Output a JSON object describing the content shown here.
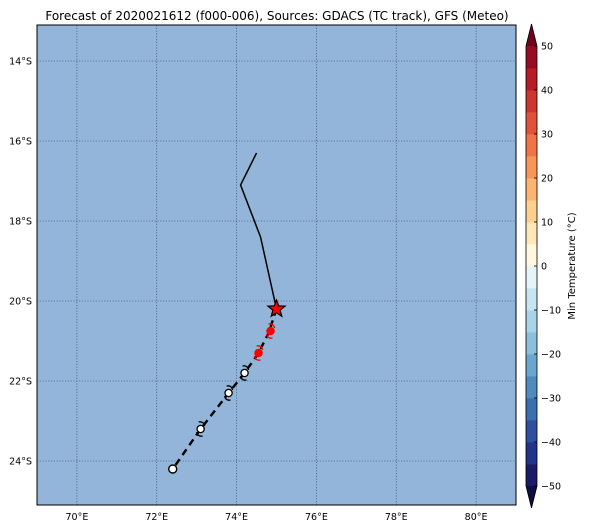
{
  "title": "Forecast of 2020021612 (f000-006), Sources: GDACS (TC track), GFS (Meteo)",
  "map": {
    "lon_range": [
      69.0,
      81.0
    ],
    "lat_range": [
      -25.1,
      -13.1
    ],
    "background_color": "#92b5d9",
    "grid": true,
    "x_ticks": [
      {
        "value": 70,
        "label": "70°E"
      },
      {
        "value": 72,
        "label": "72°E"
      },
      {
        "value": 74,
        "label": "74°E"
      },
      {
        "value": 76,
        "label": "76°E"
      },
      {
        "value": 78,
        "label": "78°E"
      },
      {
        "value": 80,
        "label": "80°E"
      }
    ],
    "y_ticks": [
      {
        "value": -14,
        "label": "14°S"
      },
      {
        "value": -16,
        "label": "16°S"
      },
      {
        "value": -18,
        "label": "18°S"
      },
      {
        "value": -20,
        "label": "20°S"
      },
      {
        "value": -22,
        "label": "22°S"
      },
      {
        "value": -24,
        "label": "24°S"
      }
    ]
  },
  "track": {
    "past": [
      [
        74.5,
        -16.3
      ],
      [
        74.1,
        -17.1
      ],
      [
        74.6,
        -18.4
      ],
      [
        75.0,
        -20.2
      ]
    ],
    "current": [
      75.0,
      -20.2
    ],
    "forecast_line": [
      [
        75.0,
        -20.2
      ],
      [
        74.8,
        -20.8
      ],
      [
        74.55,
        -21.3
      ],
      [
        74.2,
        -21.8
      ],
      [
        73.8,
        -22.3
      ],
      [
        73.1,
        -23.2
      ],
      [
        72.4,
        -24.2
      ]
    ],
    "forecast_points": [
      {
        "lon": 74.85,
        "lat": -20.75,
        "category": "storm",
        "color": "#ff0000"
      },
      {
        "lon": 74.55,
        "lat": -21.3,
        "category": "storm",
        "color": "#ff0000"
      },
      {
        "lon": 74.2,
        "lat": -21.8,
        "category": "depression",
        "color": "#ffffff"
      },
      {
        "lon": 73.8,
        "lat": -22.3,
        "category": "depression",
        "color": "#ffffff"
      },
      {
        "lon": 73.1,
        "lat": -23.2,
        "category": "depression",
        "color": "#ffffff"
      },
      {
        "lon": 72.4,
        "lat": -24.2,
        "category": "low",
        "color": "#ffffff"
      }
    ]
  },
  "colorbar": {
    "label": "Min Temperature (°C)",
    "min": -50,
    "max": 50,
    "step": 5,
    "extend": "both",
    "tick_values": [
      -50,
      -40,
      -30,
      -20,
      -10,
      0,
      10,
      20,
      30,
      40,
      50
    ],
    "tick_labels": [
      "−50",
      "−40",
      "−30",
      "−20",
      "−10",
      "0",
      "10",
      "20",
      "30",
      "40",
      "50"
    ],
    "colors": [
      "#1a1a66",
      "#23338c",
      "#2f4f9f",
      "#3b6fae",
      "#4f8bbd",
      "#6aa6cd",
      "#8cbfdc",
      "#a9d3e7",
      "#c8e4f0",
      "#e6f3f8",
      "#fff8e0",
      "#fee8b8",
      "#fdd08f",
      "#fcb571",
      "#f89657",
      "#ef7548",
      "#e0533a",
      "#cc3530",
      "#b51b28",
      "#970c22"
    ],
    "under_color": "#0e0e40",
    "over_color": "#6d0420"
  }
}
